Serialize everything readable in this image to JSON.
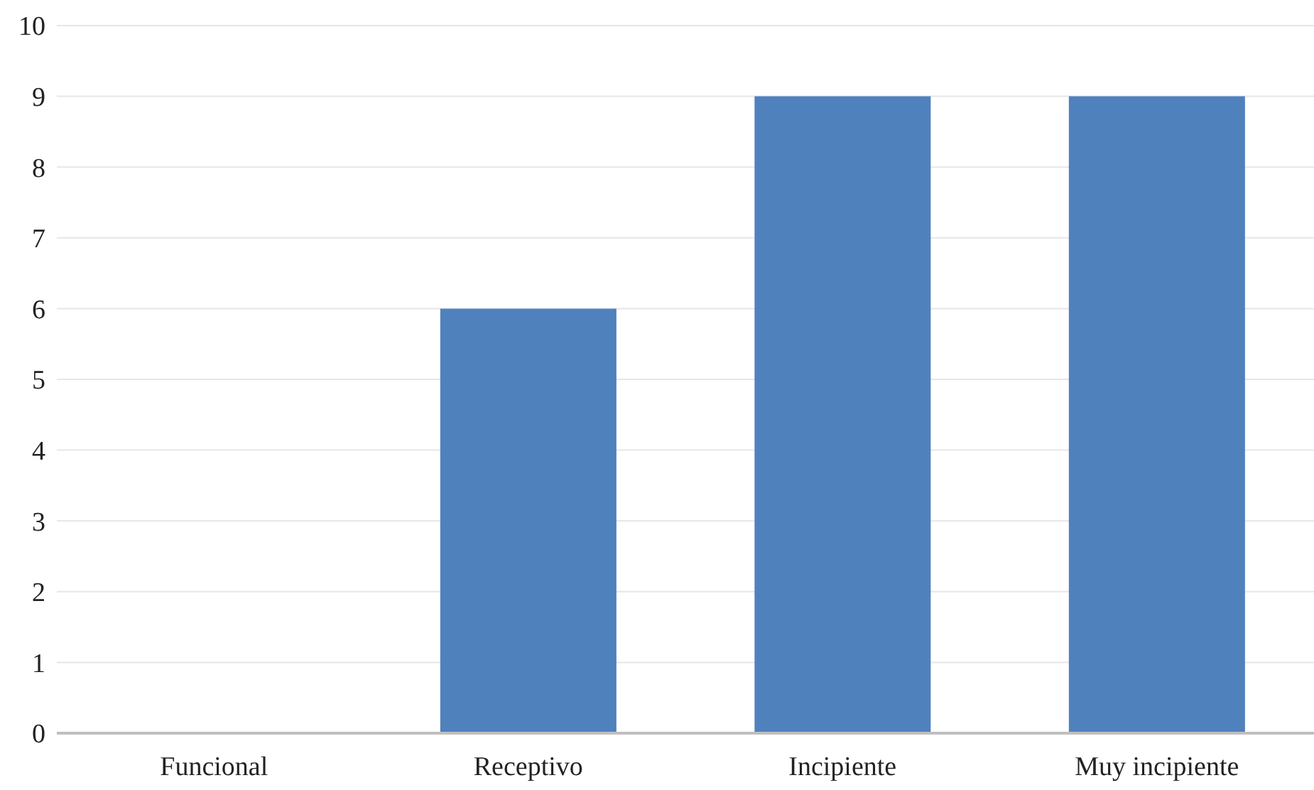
{
  "chart_data": {
    "type": "bar",
    "categories": [
      "Funcional",
      "Receptivo",
      "Incipiente",
      "Muy incipiente"
    ],
    "values": [
      0,
      6,
      9,
      9
    ],
    "color": "#4f81bd",
    "ylim": [
      0,
      10
    ],
    "yticks": [
      0,
      1,
      2,
      3,
      4,
      5,
      6,
      7,
      8,
      9,
      10
    ],
    "grid": "y",
    "legend": false
  }
}
